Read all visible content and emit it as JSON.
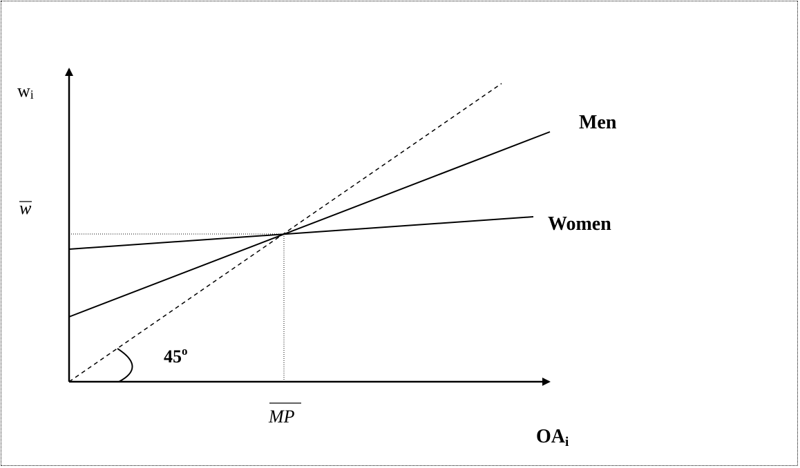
{
  "axes": {
    "y_label": "w",
    "y_label_sub": "i",
    "x_label": "OA",
    "x_label_sub": "i"
  },
  "lines": {
    "men_label": "Men",
    "women_label": "Women"
  },
  "marks": {
    "w_bar_label": "w",
    "mp_bar_label": "MP",
    "angle_label": "45",
    "angle_sup": "o"
  },
  "colors": {
    "line": "#000000",
    "background": "#ffffff"
  }
}
